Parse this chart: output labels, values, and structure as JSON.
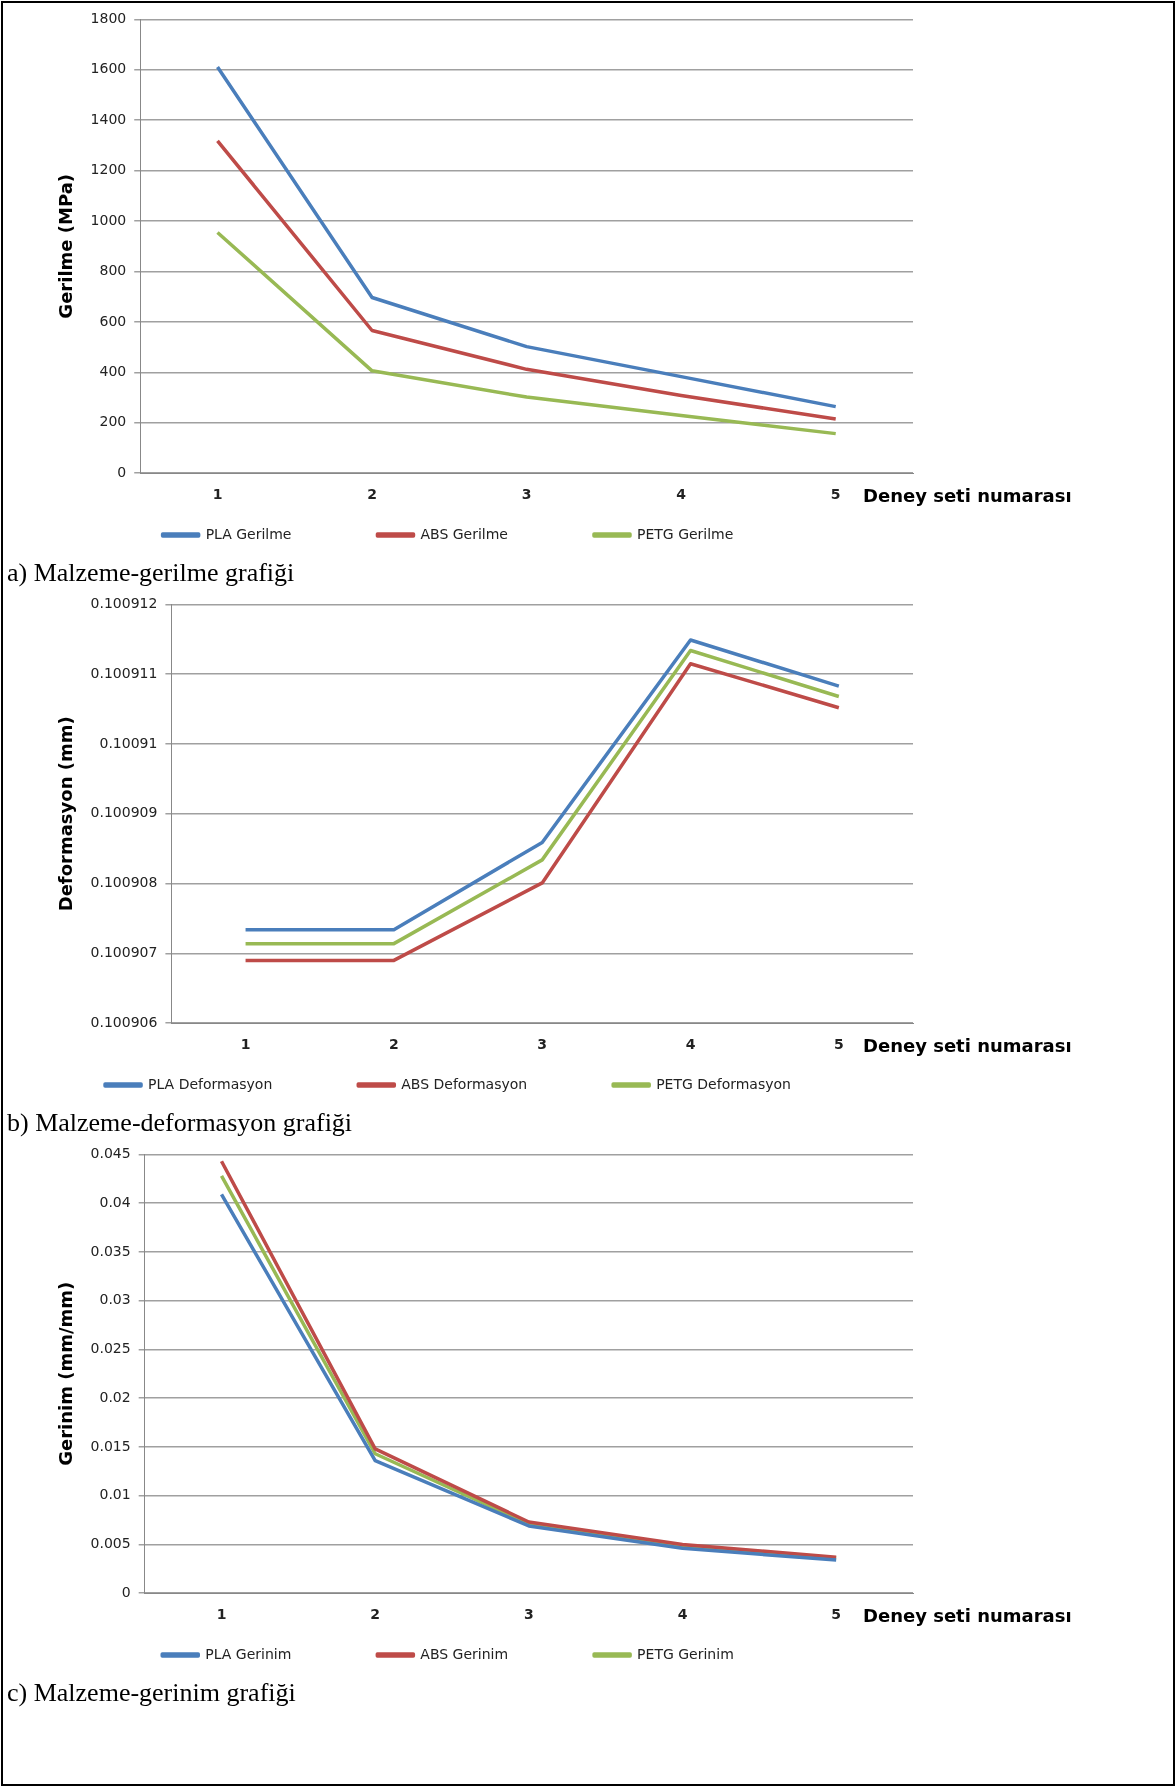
{
  "chart_data": [
    {
      "type": "line",
      "ylabel": "Gerilme (MPa)",
      "xlabel": "Deney seti numarası",
      "categories": [
        "1",
        "2",
        "3",
        "4",
        "5"
      ],
      "series": [
        {
          "name": "PLA Gerilme",
          "color": "#4a7ebb",
          "values": [
            1611,
            697,
            502,
            383,
            264
          ]
        },
        {
          "name": "ABS Gerilme",
          "color": "#be4b48",
          "values": [
            1318,
            566,
            412,
            308,
            215
          ]
        },
        {
          "name": "PETG Gerilme",
          "color": "#98b954",
          "values": [
            955,
            406,
            302,
            229,
            157
          ]
        }
      ],
      "ylim": [
        0,
        1800
      ],
      "yticks": [
        0,
        200,
        400,
        600,
        800,
        1000,
        1200,
        1400,
        1600,
        1800
      ],
      "grid": "y",
      "legend": "bottom",
      "marker": "none",
      "line_style": "solid",
      "annotations": [
        "a) Malzeme-gerilme grafiği"
      ]
    },
    {
      "type": "line",
      "ylabel": "Deformasyon (mm)",
      "xlabel": "Deney seti numarası",
      "categories": [
        "1",
        "2",
        "3",
        "4",
        "5"
      ],
      "series": [
        {
          "name": "PLA Deformasyon",
          "color": "#4a7ebb",
          "values": [
            0.10090734,
            0.10090734,
            0.10090859,
            0.10091149,
            0.10091083
          ]
        },
        {
          "name": "ABS Deformasyon",
          "color": "#be4b48",
          "values": [
            0.1009069,
            0.1009069,
            0.10090801,
            0.10091115,
            0.10091052
          ]
        },
        {
          "name": "PETG Deformasyon",
          "color": "#98b954",
          "values": [
            0.10090714,
            0.10090714,
            0.10090834,
            0.10091134,
            0.10091068
          ]
        }
      ],
      "ylim": [
        0.100906,
        0.100912
      ],
      "yticks": [
        0.100906,
        0.100907,
        0.100908,
        0.100909,
        0.10091,
        0.100911,
        0.100912
      ],
      "grid": "y",
      "legend": "bottom",
      "marker": "none",
      "line_style": "solid",
      "annotations": [
        "b) Malzeme-deformasyon grafiği"
      ]
    },
    {
      "type": "line",
      "ylabel": "Gerinim (mm/mm)",
      "xlabel": "Deney seti numarası",
      "categories": [
        "1",
        "2",
        "3",
        "4",
        "5"
      ],
      "series": [
        {
          "name": "PLA Gerinim",
          "color": "#4a7ebb",
          "values": [
            0.0409,
            0.0136,
            0.0069,
            0.0046,
            0.0034
          ]
        },
        {
          "name": "ABS Gerinim",
          "color": "#be4b48",
          "values": [
            0.0443,
            0.0148,
            0.0073,
            0.005,
            0.0037
          ]
        },
        {
          "name": "PETG Gerinim",
          "color": "#98b954",
          "values": [
            0.0428,
            0.0143,
            0.0071,
            0.0047,
            0.0036
          ]
        }
      ],
      "ylim": [
        0,
        0.045
      ],
      "yticks": [
        0,
        0.005,
        0.01,
        0.015,
        0.02,
        0.025,
        0.03,
        0.035,
        0.04,
        0.045
      ],
      "grid": "y",
      "legend": "bottom",
      "marker": "none",
      "line_style": "solid",
      "annotations": [
        "c) Malzeme-gerinim grafiği"
      ]
    }
  ]
}
